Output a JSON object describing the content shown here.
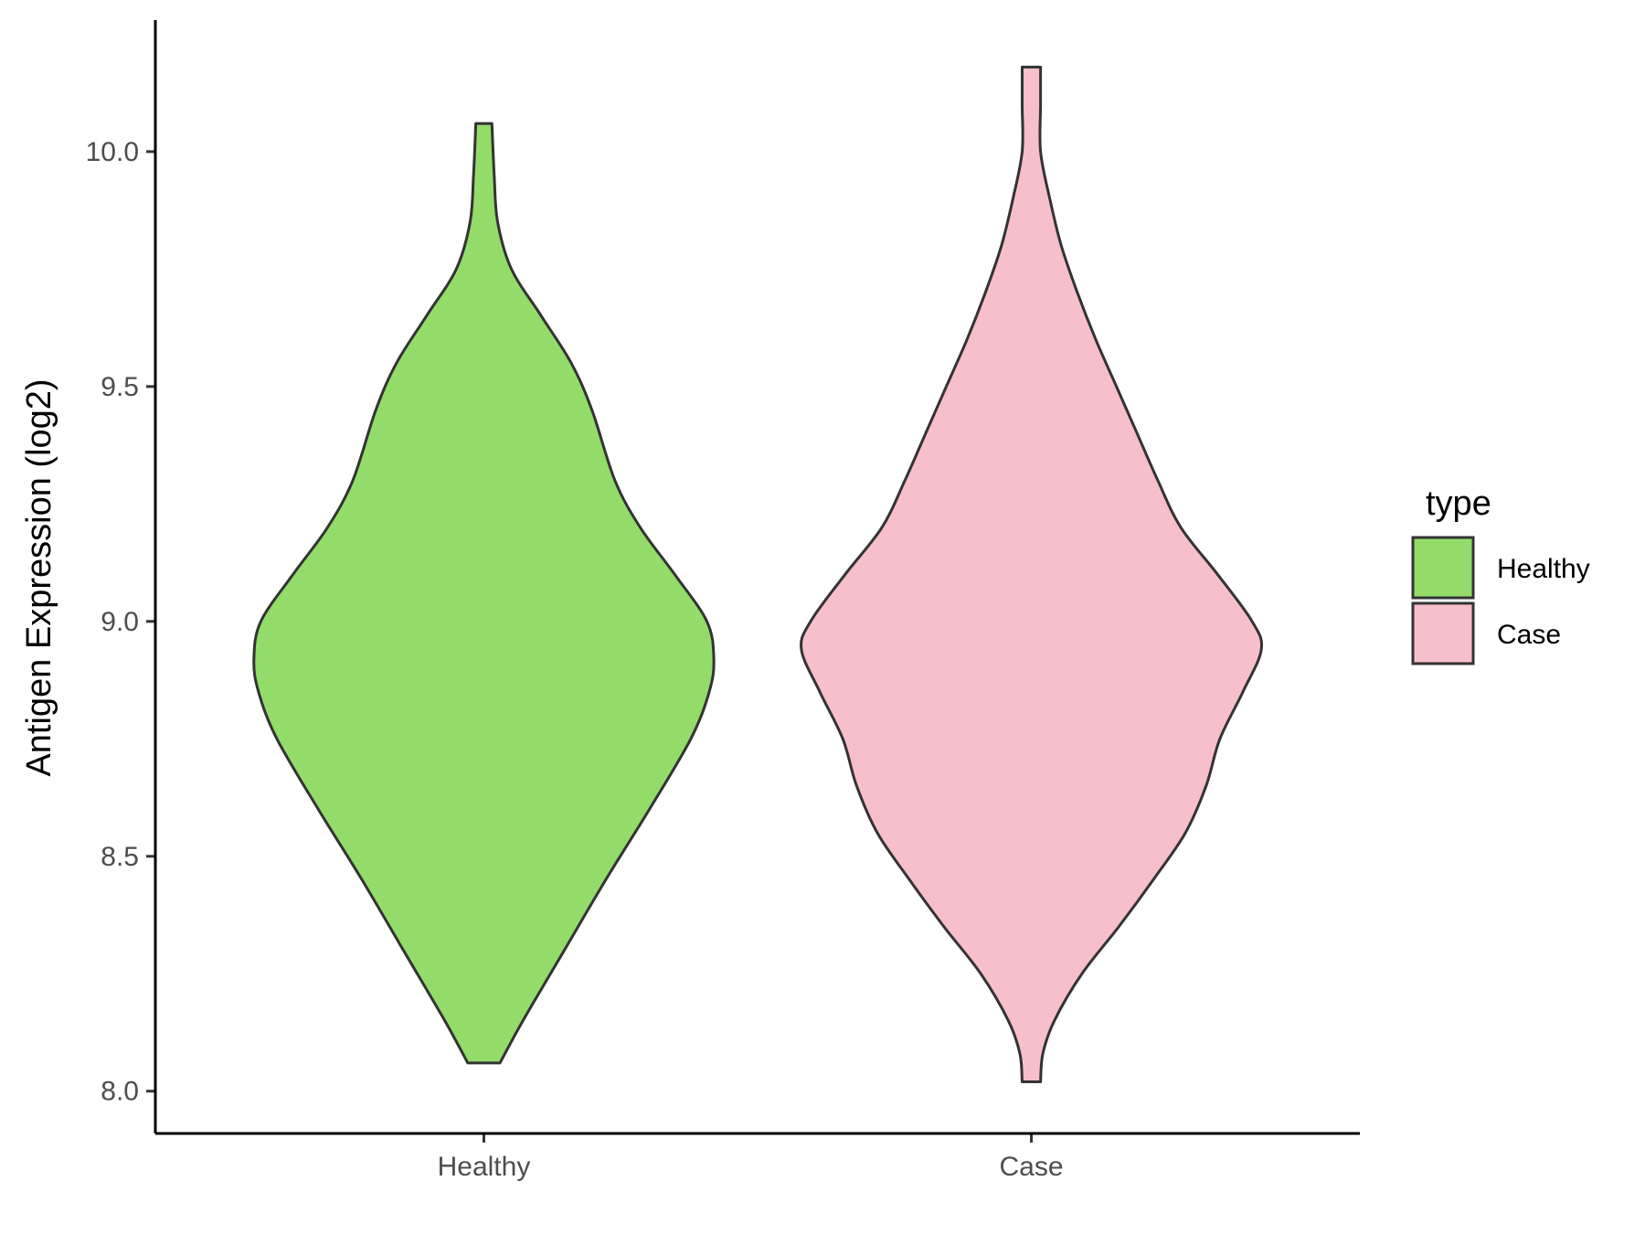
{
  "chart_data": {
    "type": "violin",
    "title": "",
    "xlabel": "",
    "ylabel": "Antigen Expression (log2)",
    "ylim": [
      7.91,
      10.28
    ],
    "yticks": [
      "8.0",
      "8.5",
      "9.0",
      "9.5",
      "10.0"
    ],
    "categories": [
      "Healthy",
      "Case"
    ],
    "grid": false,
    "legend": {
      "title": "type",
      "position": "right",
      "entries": [
        {
          "label": "Healthy",
          "color": "#93DC6A"
        },
        {
          "label": "Case",
          "color": "#F7BFCB"
        }
      ]
    },
    "series": [
      {
        "name": "Healthy",
        "color": "#93DC6A",
        "min": 8.06,
        "max": 10.06,
        "density": [
          [
            8.06,
            0.07
          ],
          [
            8.15,
            0.17
          ],
          [
            8.3,
            0.35
          ],
          [
            8.45,
            0.53
          ],
          [
            8.6,
            0.72
          ],
          [
            8.75,
            0.9
          ],
          [
            8.85,
            0.98
          ],
          [
            8.92,
            1.0
          ],
          [
            9.0,
            0.97
          ],
          [
            9.1,
            0.83
          ],
          [
            9.2,
            0.68
          ],
          [
            9.3,
            0.57
          ],
          [
            9.45,
            0.47
          ],
          [
            9.55,
            0.38
          ],
          [
            9.65,
            0.25
          ],
          [
            9.75,
            0.12
          ],
          [
            9.85,
            0.06
          ],
          [
            9.95,
            0.045
          ],
          [
            10.06,
            0.035
          ]
        ]
      },
      {
        "name": "Case",
        "color": "#F7BFCB",
        "min": 8.02,
        "max": 10.18,
        "density": [
          [
            8.02,
            0.04
          ],
          [
            8.08,
            0.05
          ],
          [
            8.15,
            0.1
          ],
          [
            8.25,
            0.22
          ],
          [
            8.35,
            0.38
          ],
          [
            8.45,
            0.53
          ],
          [
            8.55,
            0.67
          ],
          [
            8.65,
            0.76
          ],
          [
            8.75,
            0.82
          ],
          [
            8.85,
            0.92
          ],
          [
            8.94,
            1.0
          ],
          [
            9.0,
            0.96
          ],
          [
            9.1,
            0.81
          ],
          [
            9.2,
            0.65
          ],
          [
            9.3,
            0.55
          ],
          [
            9.4,
            0.46
          ],
          [
            9.5,
            0.37
          ],
          [
            9.6,
            0.28
          ],
          [
            9.7,
            0.2
          ],
          [
            9.8,
            0.13
          ],
          [
            9.9,
            0.08
          ],
          [
            10.0,
            0.04
          ],
          [
            10.1,
            0.04
          ],
          [
            10.18,
            0.04
          ]
        ]
      }
    ]
  }
}
